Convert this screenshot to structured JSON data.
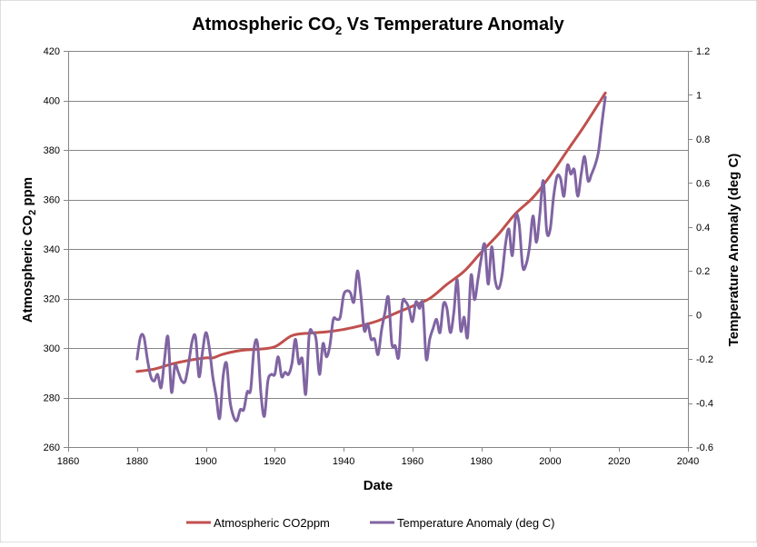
{
  "chart_data": {
    "type": "line",
    "title": "Atmospheric CO",
    "title_sub": "2",
    "title_suffix": " Vs Temperature Anomaly",
    "xlabel": "Date",
    "ylabel_left_prefix": "Atmospheric CO",
    "ylabel_left_sub": "2",
    "ylabel_left_suffix": " ppm",
    "ylabel_right": "Temperature Anomaly (deg C)",
    "xlim": [
      1860,
      2040
    ],
    "ylim_left": [
      260,
      420
    ],
    "ylim_right": [
      -0.6,
      1.2
    ],
    "x_ticks": [
      "1860",
      "1880",
      "1900",
      "1920",
      "1940",
      "1960",
      "1980",
      "2000",
      "2020",
      "2040"
    ],
    "y_left_ticks": [
      "260",
      "280",
      "300",
      "320",
      "340",
      "360",
      "380",
      "400",
      "420"
    ],
    "y_right_ticks": [
      "-0.6",
      "-0.4",
      "-0.2",
      "0",
      "0.2",
      "0.4",
      "0.6",
      "0.8",
      "1",
      "1.2"
    ],
    "grid": "horizontal",
    "legend_position": "bottom",
    "series": [
      {
        "name": "Atmospheric CO2ppm",
        "axis": "left",
        "color": "#c0504d",
        "x": [
          1880,
          1885,
          1890,
          1895,
          1900,
          1902,
          1905,
          1910,
          1915,
          1920,
          1925,
          1930,
          1935,
          1940,
          1945,
          1950,
          1955,
          1960,
          1965,
          1970,
          1975,
          1980,
          1985,
          1990,
          1995,
          2000,
          2005,
          2010,
          2016
        ],
        "values": [
          290.5,
          291.5,
          293.5,
          295,
          296,
          296,
          297.5,
          299,
          299.5,
          300.5,
          305,
          306,
          306.5,
          307.5,
          309,
          311,
          314,
          316.9,
          320,
          325.7,
          331,
          338.7,
          346,
          354.4,
          360.8,
          369.6,
          379.8,
          389.9,
          403
        ]
      },
      {
        "name": "Temperature Anomaly (deg C)",
        "axis": "right",
        "color": "#8064a2",
        "x": [
          1880,
          1881,
          1882,
          1883,
          1884,
          1885,
          1886,
          1887,
          1888,
          1889,
          1890,
          1891,
          1892,
          1893,
          1894,
          1895,
          1896,
          1897,
          1898,
          1899,
          1900,
          1901,
          1902,
          1903,
          1904,
          1905,
          1906,
          1907,
          1908,
          1909,
          1910,
          1911,
          1912,
          1913,
          1914,
          1915,
          1916,
          1917,
          1918,
          1919,
          1920,
          1921,
          1922,
          1923,
          1924,
          1925,
          1926,
          1927,
          1928,
          1929,
          1930,
          1931,
          1932,
          1933,
          1934,
          1935,
          1936,
          1937,
          1938,
          1939,
          1940,
          1941,
          1942,
          1943,
          1944,
          1945,
          1946,
          1947,
          1948,
          1949,
          1950,
          1951,
          1952,
          1953,
          1954,
          1955,
          1956,
          1957,
          1958,
          1959,
          1960,
          1961,
          1962,
          1963,
          1964,
          1965,
          1966,
          1967,
          1968,
          1969,
          1970,
          1971,
          1972,
          1973,
          1974,
          1975,
          1976,
          1977,
          1978,
          1979,
          1980,
          1981,
          1982,
          1983,
          1984,
          1985,
          1986,
          1987,
          1988,
          1989,
          1990,
          1991,
          1992,
          1993,
          1994,
          1995,
          1996,
          1997,
          1998,
          1999,
          2000,
          2001,
          2002,
          2003,
          2004,
          2005,
          2006,
          2007,
          2008,
          2009,
          2010,
          2011,
          2012,
          2013,
          2014,
          2015,
          2016
        ],
        "values": [
          -0.2,
          -0.1,
          -0.1,
          -0.2,
          -0.28,
          -0.3,
          -0.27,
          -0.33,
          -0.2,
          -0.1,
          -0.35,
          -0.23,
          -0.26,
          -0.3,
          -0.3,
          -0.22,
          -0.12,
          -0.1,
          -0.28,
          -0.17,
          -0.08,
          -0.15,
          -0.28,
          -0.37,
          -0.47,
          -0.28,
          -0.22,
          -0.39,
          -0.46,
          -0.48,
          -0.43,
          -0.43,
          -0.35,
          -0.34,
          -0.15,
          -0.13,
          -0.36,
          -0.46,
          -0.3,
          -0.27,
          -0.27,
          -0.19,
          -0.28,
          -0.26,
          -0.27,
          -0.22,
          -0.11,
          -0.22,
          -0.2,
          -0.36,
          -0.09,
          -0.08,
          -0.11,
          -0.27,
          -0.13,
          -0.19,
          -0.14,
          -0.02,
          -0.02,
          -0.01,
          0.09,
          0.11,
          0.1,
          0.06,
          0.2,
          0.09,
          -0.07,
          -0.04,
          -0.11,
          -0.11,
          -0.18,
          -0.07,
          0.01,
          0.08,
          -0.13,
          -0.14,
          -0.19,
          0.05,
          0.06,
          0.03,
          -0.03,
          0.06,
          0.03,
          0.05,
          -0.2,
          -0.11,
          -0.06,
          -0.02,
          -0.08,
          0.05,
          0.03,
          -0.08,
          0.01,
          0.16,
          -0.07,
          -0.01,
          -0.1,
          0.18,
          0.07,
          0.16,
          0.26,
          0.32,
          0.14,
          0.31,
          0.16,
          0.12,
          0.18,
          0.32,
          0.39,
          0.27,
          0.45,
          0.41,
          0.22,
          0.23,
          0.31,
          0.45,
          0.33,
          0.46,
          0.61,
          0.38,
          0.39,
          0.54,
          0.63,
          0.62,
          0.54,
          0.68,
          0.64,
          0.66,
          0.54,
          0.64,
          0.72,
          0.61,
          0.64,
          0.68,
          0.74,
          0.87,
          0.99
        ]
      }
    ]
  }
}
